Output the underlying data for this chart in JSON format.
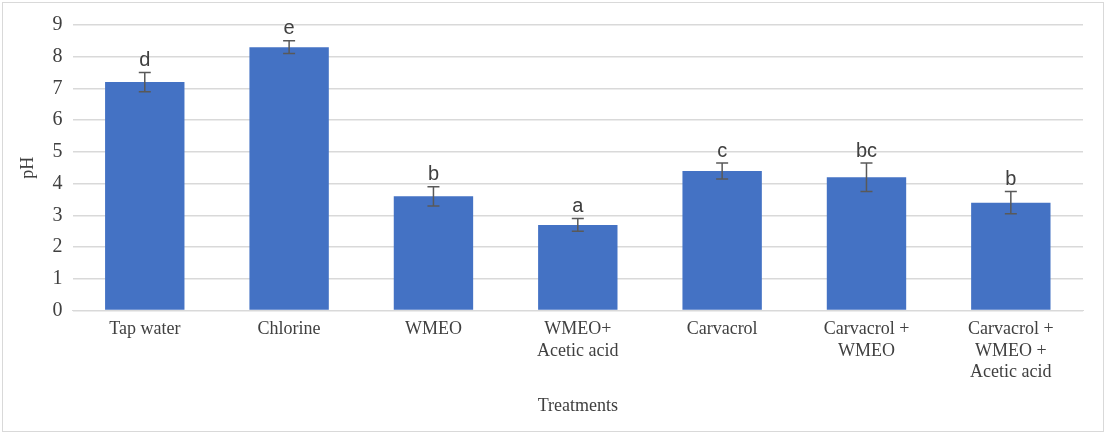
{
  "chart_data": {
    "type": "bar",
    "xlabel": "Treatments",
    "ylabel": "pH",
    "categories": [
      "Tap water",
      "Chlorine",
      "WMEO",
      "WMEO+ Acetic acid",
      "Carvacrol",
      "Carvacrol + WMEO",
      "Carvacrol + WMEO + Acetic acid"
    ],
    "values": [
      7.2,
      8.3,
      3.6,
      2.7,
      4.4,
      4.2,
      3.4
    ],
    "errors": [
      0.3,
      0.2,
      0.3,
      0.2,
      0.25,
      0.45,
      0.35
    ],
    "color": "#4472c4",
    "ylim": [
      0,
      9
    ],
    "yticks": [
      0,
      1,
      2,
      3,
      4,
      5,
      6,
      7,
      8,
      9
    ],
    "grid": "y",
    "annotations": [
      {
        "text": "d",
        "x": "Tap water",
        "y": 7.5
      },
      {
        "text": "e",
        "x": "Chlorine",
        "y": 8.5
      },
      {
        "text": "b",
        "x": "WMEO",
        "y": 3.9
      },
      {
        "text": "a",
        "x": "WMEO+ Acetic acid",
        "y": 2.9
      },
      {
        "text": "c",
        "x": "Carvacrol",
        "y": 4.65
      },
      {
        "text": "bc",
        "x": "Carvacrol + WMEO",
        "y": 4.65
      },
      {
        "text": "b",
        "x": "Carvacrol + WMEO + Acetic acid",
        "y": 3.75
      }
    ]
  }
}
